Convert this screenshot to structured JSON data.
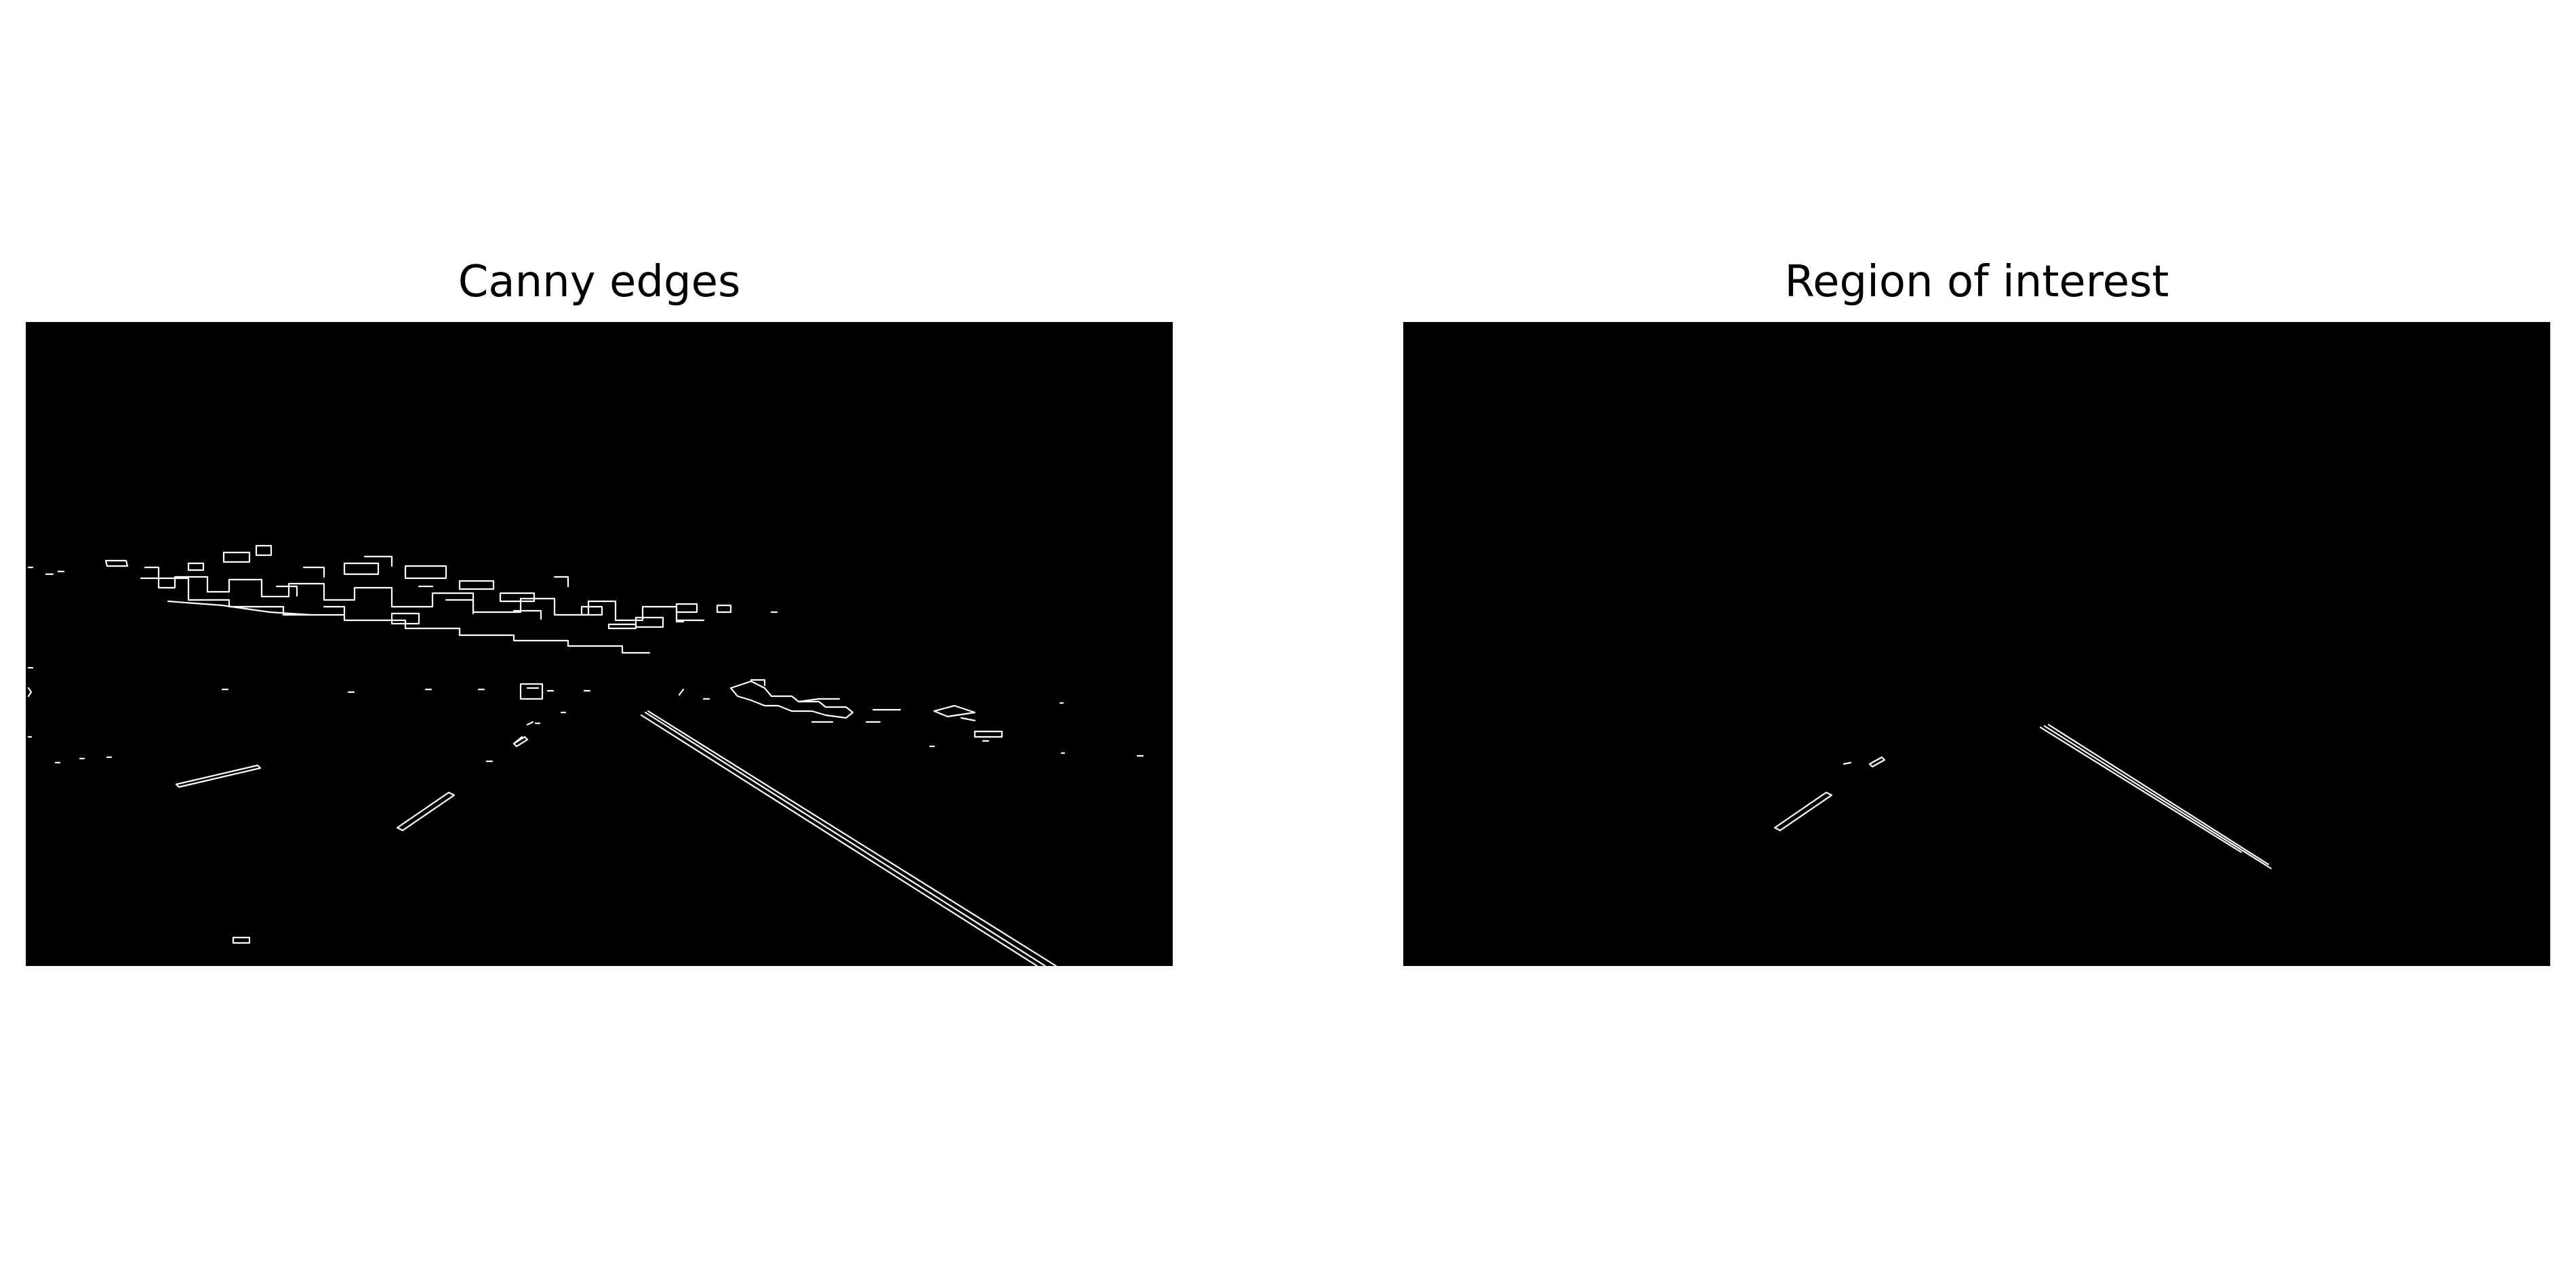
{
  "figure": {
    "panels": [
      {
        "title": "Canny edges"
      },
      {
        "title": "Region of interest"
      }
    ],
    "colors": {
      "page_background": "#ffffff",
      "image_background": "#000000",
      "edge": "#ffffff",
      "title_text": "#000000"
    }
  }
}
